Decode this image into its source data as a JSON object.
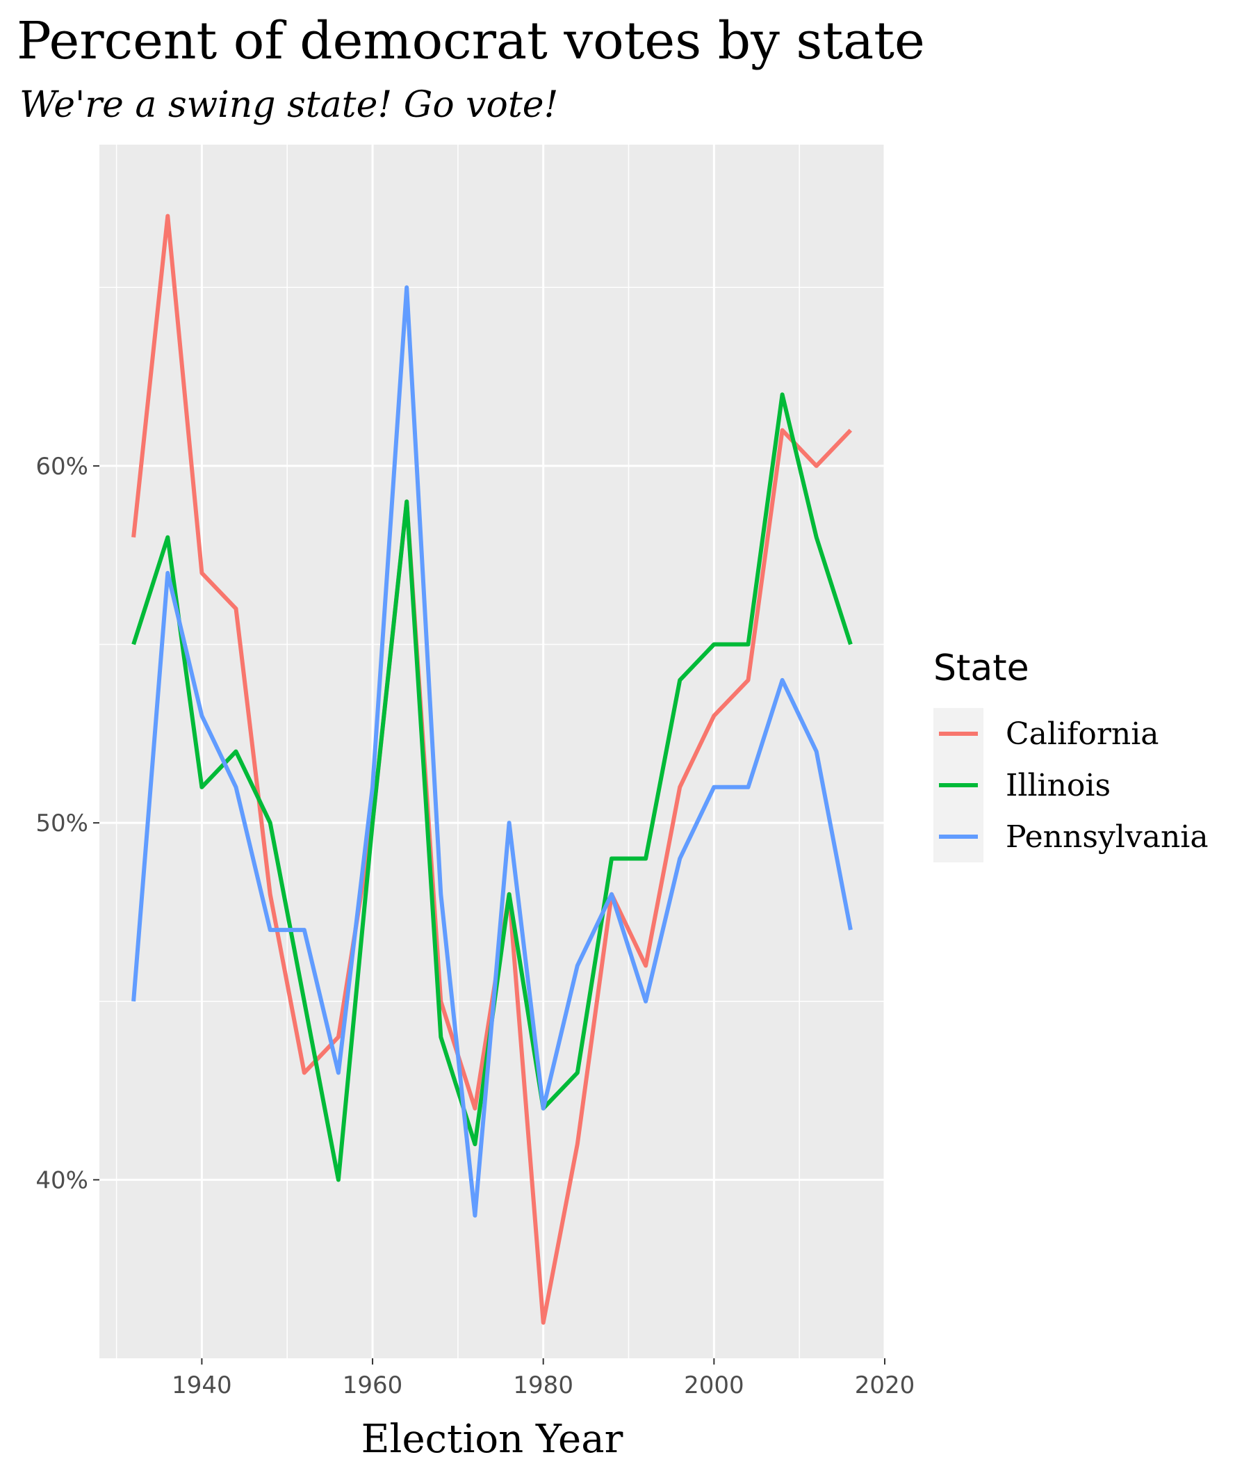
{
  "chart_data": {
    "type": "line",
    "title": "Percent of democrat votes by state",
    "subtitle": "We're a swing state! Go vote!",
    "xlabel": "Election Year",
    "ylabel": "",
    "x": [
      1932,
      1936,
      1940,
      1944,
      1948,
      1952,
      1956,
      1960,
      1964,
      1968,
      1972,
      1976,
      1980,
      1984,
      1988,
      1992,
      1996,
      2000,
      2004,
      2008,
      2012,
      2016
    ],
    "series": [
      {
        "name": "California",
        "color": "#F8766D",
        "values": [
          58,
          67,
          57,
          56,
          48,
          43,
          44,
          50,
          59,
          45,
          42,
          48,
          36,
          41,
          48,
          46,
          51,
          53,
          54,
          61,
          60,
          61
        ]
      },
      {
        "name": "Illinois",
        "color": "#00BA38",
        "values": [
          55,
          58,
          51,
          52,
          50,
          45,
          40,
          50,
          59,
          44,
          41,
          48,
          42,
          43,
          49,
          49,
          54,
          55,
          55,
          62,
          58,
          55
        ]
      },
      {
        "name": "Pennsylvania",
        "color": "#619CFF",
        "values": [
          45,
          57,
          53,
          51,
          47,
          47,
          43,
          51,
          65,
          48,
          39,
          50,
          42,
          46,
          48,
          45,
          49,
          51,
          51,
          54,
          52,
          47
        ]
      }
    ],
    "xlim": [
      1928,
      2020
    ],
    "ylim": [
      35,
      69
    ],
    "x_ticks": [
      1940,
      1960,
      1980,
      2000,
      2020
    ],
    "x_tick_labels": [
      "1940",
      "1960",
      "1980",
      "2000",
      "2020"
    ],
    "y_ticks": [
      40,
      50,
      60
    ],
    "y_tick_labels": [
      "40%",
      "50%",
      "60%"
    ],
    "grid": true,
    "legend": {
      "title": "State",
      "position": "right"
    }
  }
}
